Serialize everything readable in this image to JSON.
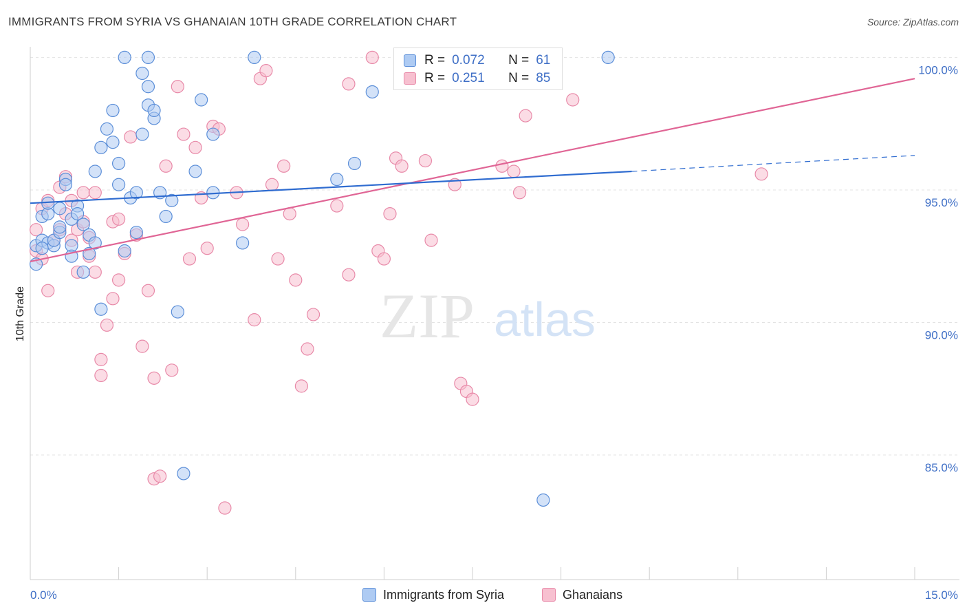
{
  "title": "IMMIGRANTS FROM SYRIA VS GHANAIAN 10TH GRADE CORRELATION CHART",
  "source": "Source: ZipAtlas.com",
  "watermark": {
    "zip": "ZIP",
    "atlas": "atlas"
  },
  "legend": {
    "r_label": "R =",
    "n_label": "N =",
    "rows": [
      {
        "r": "0.072",
        "n": "61",
        "fill": "#aecbf3",
        "stroke": "#5b8ed8"
      },
      {
        "r": "0.251",
        "n": "85",
        "fill": "#f7c0d0",
        "stroke": "#e889a8"
      }
    ]
  },
  "bottom_legend": [
    "Immigrants from Syria",
    "Ghanaians"
  ],
  "chart_data": {
    "type": "scatter",
    "title": "IMMIGRANTS FROM SYRIA VS GHANAIAN 10TH GRADE CORRELATION CHART",
    "ylabel": "10th Grade",
    "xlabel": "",
    "x_tick_labels": [
      "0.0%",
      "15.0%"
    ],
    "y_tick_labels": [
      "100.0%",
      "95.0%",
      "90.0%",
      "85.0%"
    ],
    "y_ticks": [
      100,
      95,
      90,
      85
    ],
    "xlim": [
      0,
      15
    ],
    "ylim": [
      80.3,
      100.4
    ],
    "grid": true,
    "colors": {
      "syria": "#5b8ed8",
      "ghana": "#e889a8",
      "syria_line": "#2f6cd0",
      "ghana_line": "#e06595",
      "tick": "#3f6fc6"
    },
    "series": [
      {
        "name": "Immigrants from Syria",
        "trend": {
          "x0": 0,
          "y0": 94.5,
          "x1": 10.2,
          "y1": 95.7,
          "dash_x1": 15,
          "dash_y1": 96.3
        },
        "points": [
          [
            0.1,
            92.9
          ],
          [
            0.1,
            92.2
          ],
          [
            0.2,
            93.1
          ],
          [
            0.2,
            94.0
          ],
          [
            0.3,
            94.1
          ],
          [
            0.3,
            93.0
          ],
          [
            0.3,
            94.5
          ],
          [
            0.4,
            92.9
          ],
          [
            0.4,
            93.1
          ],
          [
            0.5,
            93.4
          ],
          [
            0.5,
            94.3
          ],
          [
            0.5,
            93.6
          ],
          [
            0.6,
            95.4
          ],
          [
            0.6,
            95.2
          ],
          [
            0.7,
            93.9
          ],
          [
            0.7,
            92.9
          ],
          [
            0.7,
            92.5
          ],
          [
            0.8,
            94.4
          ],
          [
            0.8,
            94.1
          ],
          [
            0.9,
            91.9
          ],
          [
            0.9,
            93.7
          ],
          [
            1.0,
            93.3
          ],
          [
            1.0,
            92.6
          ],
          [
            1.1,
            95.7
          ],
          [
            1.1,
            93.0
          ],
          [
            1.2,
            90.5
          ],
          [
            1.2,
            96.6
          ],
          [
            1.3,
            97.3
          ],
          [
            1.4,
            98.0
          ],
          [
            1.4,
            96.8
          ],
          [
            1.5,
            95.2
          ],
          [
            1.5,
            96.0
          ],
          [
            1.6,
            92.7
          ],
          [
            1.7,
            94.7
          ],
          [
            1.8,
            94.9
          ],
          [
            1.8,
            93.4
          ],
          [
            1.9,
            97.1
          ],
          [
            1.9,
            99.4
          ],
          [
            2.0,
            98.9
          ],
          [
            2.0,
            98.2
          ],
          [
            2.1,
            97.7
          ],
          [
            2.1,
            98.0
          ],
          [
            2.2,
            94.9
          ],
          [
            2.3,
            94.0
          ],
          [
            2.4,
            94.6
          ],
          [
            2.5,
            90.4
          ],
          [
            2.6,
            84.3
          ],
          [
            2.8,
            95.7
          ],
          [
            2.9,
            98.4
          ],
          [
            3.1,
            97.1
          ],
          [
            3.1,
            94.9
          ],
          [
            3.6,
            93.0
          ],
          [
            1.6,
            100.0
          ],
          [
            2.0,
            100.0
          ],
          [
            3.8,
            100.0
          ],
          [
            5.2,
            95.4
          ],
          [
            5.5,
            96.0
          ],
          [
            5.8,
            98.7
          ],
          [
            8.7,
            83.3
          ],
          [
            9.8,
            100.0
          ],
          [
            0.2,
            92.8
          ]
        ]
      },
      {
        "name": "Ghanaians",
        "trend": {
          "x0": 0,
          "y0": 92.3,
          "x1": 15,
          "y1": 99.2
        },
        "points": [
          [
            0.1,
            93.5
          ],
          [
            0.1,
            92.7
          ],
          [
            0.2,
            94.3
          ],
          [
            0.2,
            92.4
          ],
          [
            0.3,
            94.6
          ],
          [
            0.3,
            91.2
          ],
          [
            0.4,
            93.1
          ],
          [
            0.5,
            95.1
          ],
          [
            0.5,
            93.5
          ],
          [
            0.6,
            94.1
          ],
          [
            0.6,
            95.5
          ],
          [
            0.7,
            94.6
          ],
          [
            0.7,
            93.1
          ],
          [
            0.8,
            91.9
          ],
          [
            0.8,
            93.5
          ],
          [
            0.9,
            94.9
          ],
          [
            0.9,
            93.8
          ],
          [
            1.0,
            93.2
          ],
          [
            1.0,
            92.5
          ],
          [
            1.1,
            91.9
          ],
          [
            1.1,
            94.9
          ],
          [
            1.2,
            88.6
          ],
          [
            1.2,
            88.0
          ],
          [
            1.3,
            89.9
          ],
          [
            1.4,
            90.9
          ],
          [
            1.4,
            93.8
          ],
          [
            1.5,
            91.6
          ],
          [
            1.5,
            93.9
          ],
          [
            1.6,
            92.6
          ],
          [
            1.7,
            97.0
          ],
          [
            1.8,
            93.3
          ],
          [
            1.9,
            89.1
          ],
          [
            2.0,
            91.2
          ],
          [
            2.1,
            87.9
          ],
          [
            2.1,
            84.1
          ],
          [
            2.2,
            84.2
          ],
          [
            2.3,
            95.9
          ],
          [
            2.4,
            88.2
          ],
          [
            2.5,
            98.9
          ],
          [
            2.6,
            97.1
          ],
          [
            2.7,
            92.4
          ],
          [
            2.8,
            96.6
          ],
          [
            2.9,
            94.7
          ],
          [
            3.0,
            92.8
          ],
          [
            3.1,
            97.4
          ],
          [
            3.2,
            97.3
          ],
          [
            3.3,
            83.0
          ],
          [
            3.5,
            94.9
          ],
          [
            3.6,
            93.7
          ],
          [
            3.8,
            90.1
          ],
          [
            3.9,
            99.2
          ],
          [
            4.0,
            99.5
          ],
          [
            4.1,
            95.2
          ],
          [
            4.2,
            92.4
          ],
          [
            4.3,
            95.9
          ],
          [
            4.4,
            94.1
          ],
          [
            4.5,
            91.6
          ],
          [
            4.6,
            87.6
          ],
          [
            4.7,
            89.0
          ],
          [
            4.8,
            90.3
          ],
          [
            5.2,
            94.4
          ],
          [
            5.4,
            91.8
          ],
          [
            5.4,
            99.0
          ],
          [
            5.8,
            100.0
          ],
          [
            5.9,
            92.7
          ],
          [
            6.0,
            92.4
          ],
          [
            6.1,
            94.1
          ],
          [
            6.2,
            96.2
          ],
          [
            6.3,
            95.9
          ],
          [
            6.6,
            100.0
          ],
          [
            6.7,
            96.1
          ],
          [
            6.8,
            93.1
          ],
          [
            6.9,
            100.0
          ],
          [
            7.1,
            100.0
          ],
          [
            7.2,
            95.2
          ],
          [
            7.3,
            87.7
          ],
          [
            7.4,
            87.4
          ],
          [
            7.5,
            87.1
          ],
          [
            7.8,
            99.8
          ],
          [
            8.0,
            95.9
          ],
          [
            8.2,
            95.7
          ],
          [
            8.3,
            94.9
          ],
          [
            8.4,
            97.8
          ],
          [
            9.2,
            98.4
          ],
          [
            12.4,
            95.6
          ]
        ]
      }
    ]
  }
}
